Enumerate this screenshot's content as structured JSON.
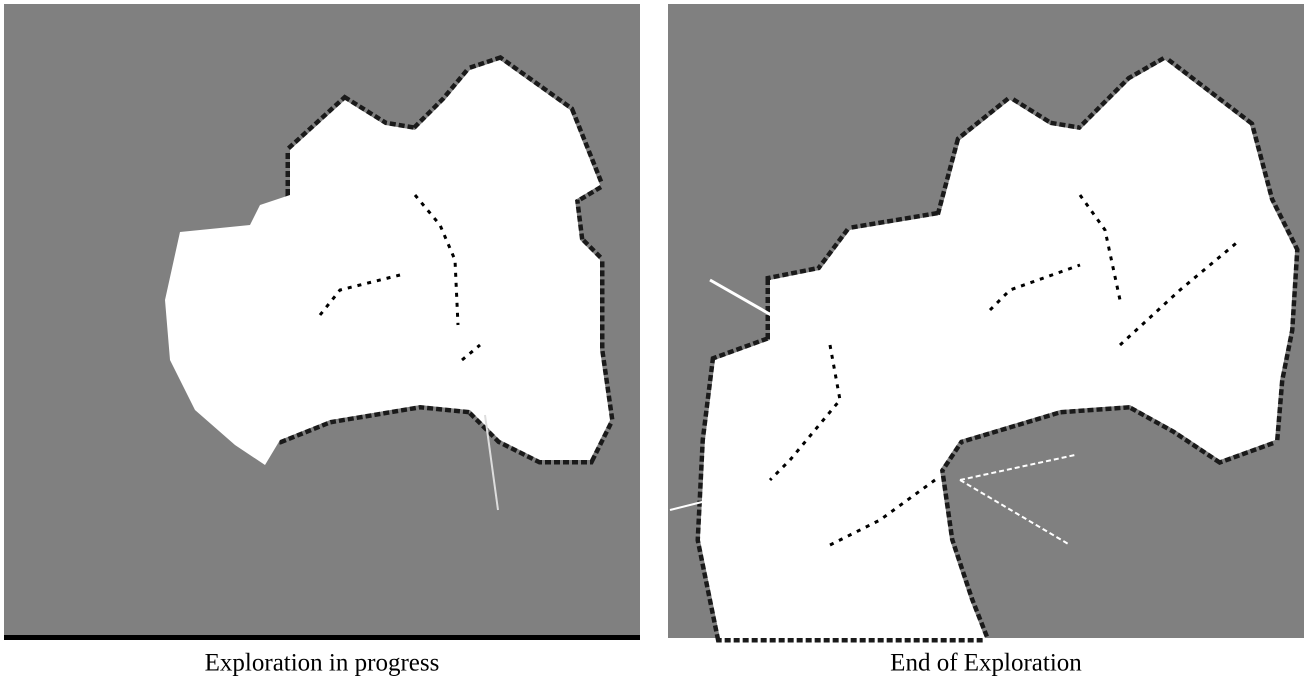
{
  "figures": [
    {
      "caption": "Exploration in progress"
    },
    {
      "caption": "End of Exploration"
    }
  ]
}
